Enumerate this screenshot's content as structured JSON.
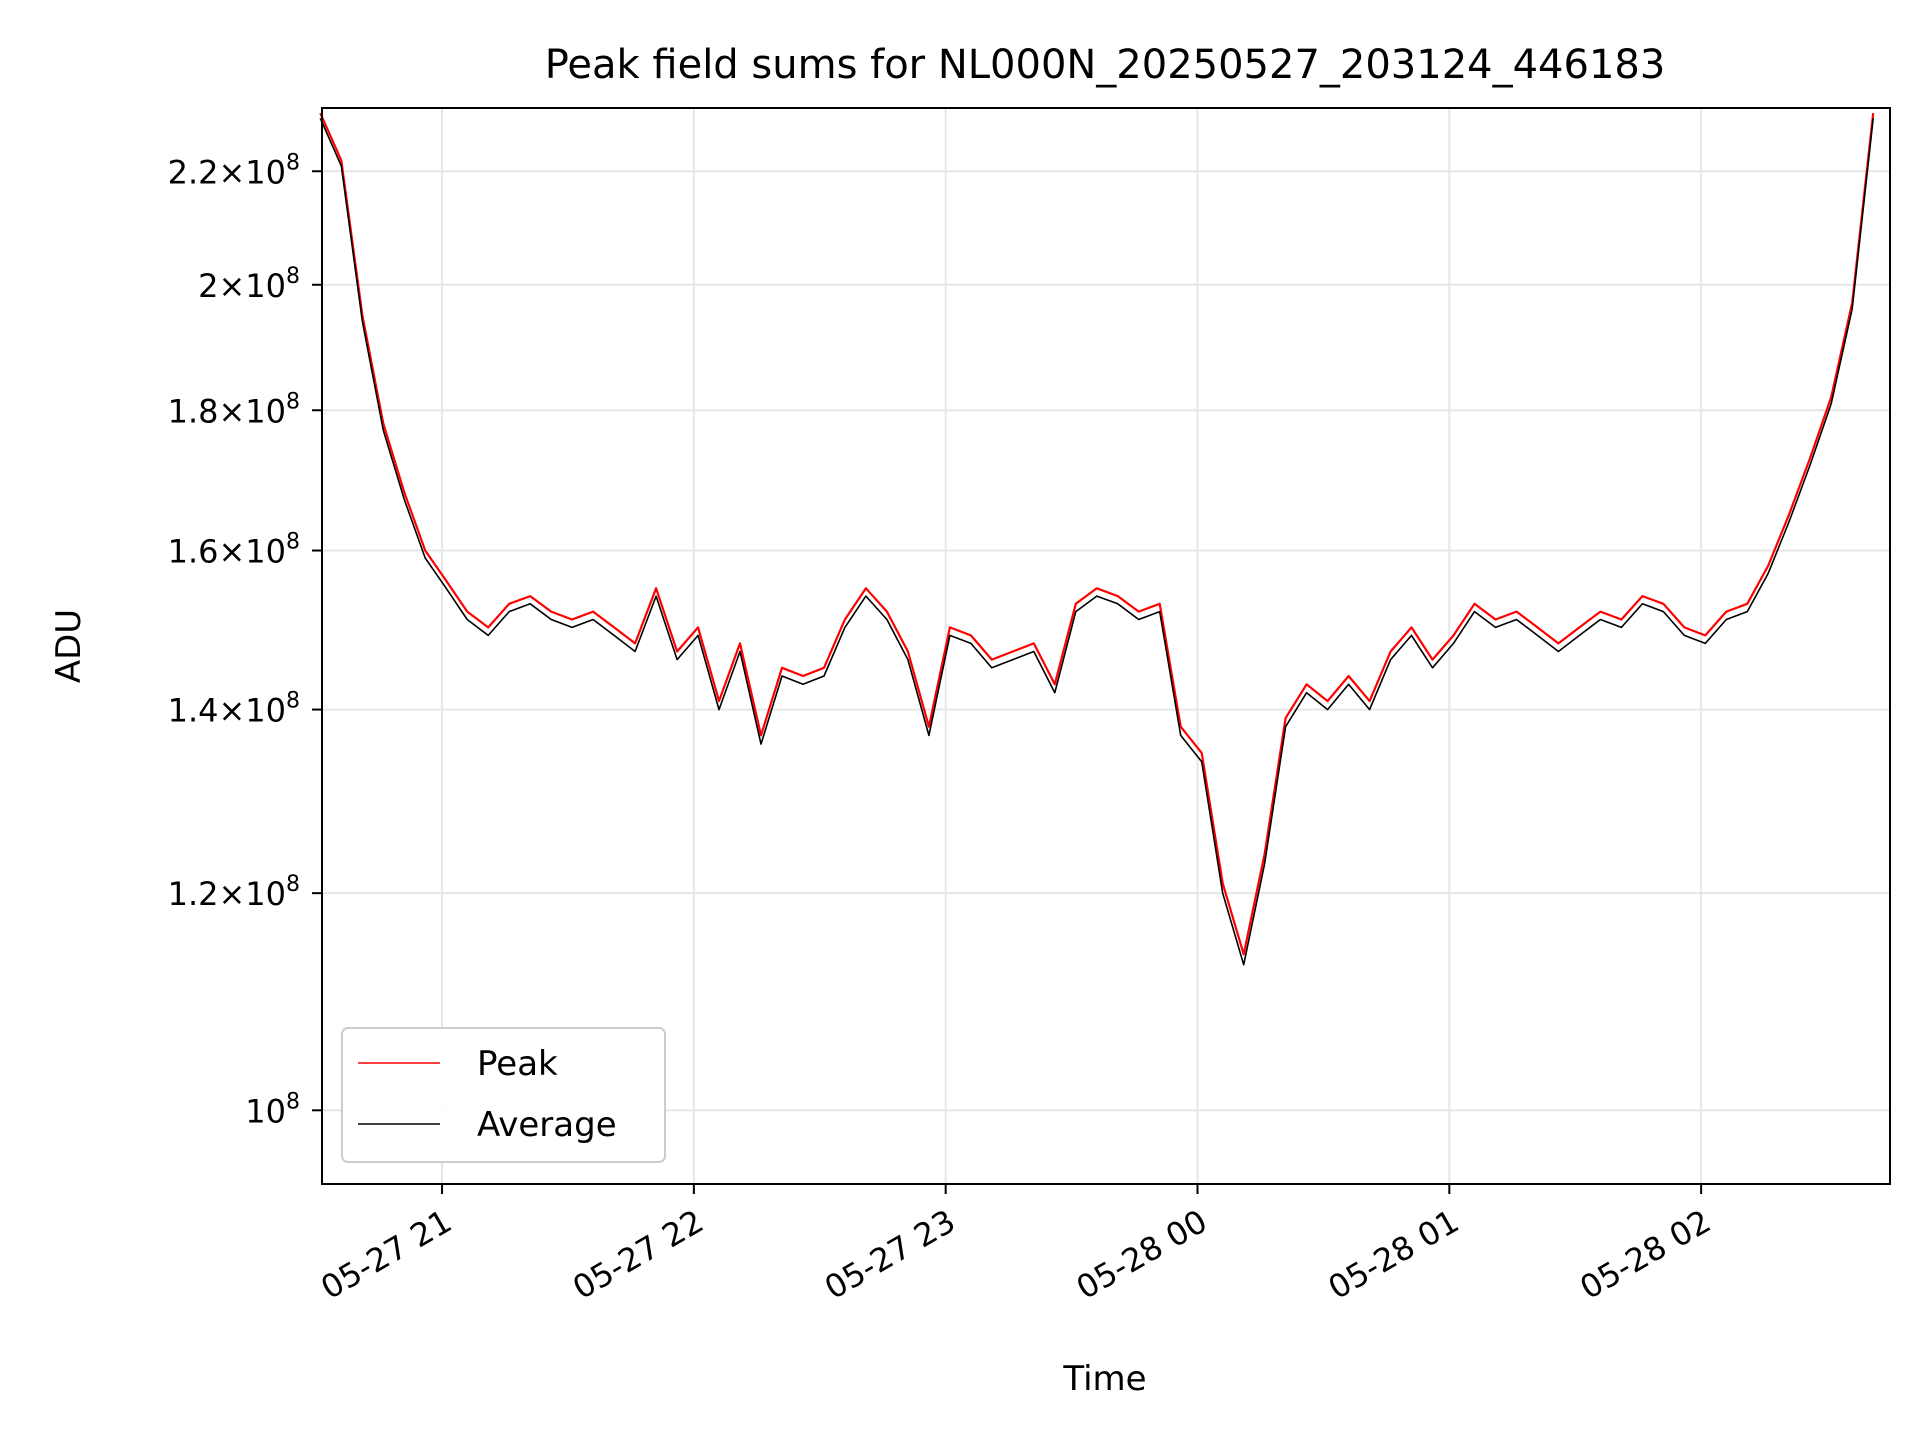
{
  "chart_data": {
    "type": "line",
    "title": "Peak field sums for NL000N_20250527_203124_446183",
    "xlabel": "Time",
    "ylabel": "ADU",
    "yscale": "log",
    "xlim": [
      "2025-05-27 20:31:24",
      "2025-05-28 02:45:00"
    ],
    "ylim": [
      94000000,
      232000000
    ],
    "x_ticks": [
      {
        "value": "2025-05-27 21:00",
        "label": "05-27 21"
      },
      {
        "value": "2025-05-27 22:00",
        "label": "05-27 22"
      },
      {
        "value": "2025-05-27 23:00",
        "label": "05-27 23"
      },
      {
        "value": "2025-05-28 00:00",
        "label": "05-28 00"
      },
      {
        "value": "2025-05-28 01:00",
        "label": "05-28 01"
      },
      {
        "value": "2025-05-28 02:00",
        "label": "05-28 02"
      }
    ],
    "y_ticks": [
      {
        "value": 100000000,
        "mantissa": "",
        "exponent": "8"
      },
      {
        "value": 120000000,
        "mantissa": "1.2",
        "exponent": "8"
      },
      {
        "value": 140000000,
        "mantissa": "1.4",
        "exponent": "8"
      },
      {
        "value": 160000000,
        "mantissa": "1.6",
        "exponent": "8"
      },
      {
        "value": 180000000,
        "mantissa": "1.8",
        "exponent": "8"
      },
      {
        "value": 200000000,
        "mantissa": "2",
        "exponent": "8"
      },
      {
        "value": 220000000,
        "mantissa": "2.2",
        "exponent": "8"
      }
    ],
    "grid": true,
    "legend_position": "bottom-left",
    "series": [
      {
        "name": "Peak",
        "color": "#ff0000",
        "x": [
          "2025-05-27 20:31",
          "2025-05-27 20:36",
          "2025-05-27 20:41",
          "2025-05-27 20:46",
          "2025-05-27 20:51",
          "2025-05-27 20:56",
          "2025-05-27 21:01",
          "2025-05-27 21:06",
          "2025-05-27 21:11",
          "2025-05-27 21:16",
          "2025-05-27 21:21",
          "2025-05-27 21:26",
          "2025-05-27 21:31",
          "2025-05-27 21:36",
          "2025-05-27 21:41",
          "2025-05-27 21:46",
          "2025-05-27 21:51",
          "2025-05-27 21:56",
          "2025-05-27 22:01",
          "2025-05-27 22:06",
          "2025-05-27 22:11",
          "2025-05-27 22:16",
          "2025-05-27 22:21",
          "2025-05-27 22:26",
          "2025-05-27 22:31",
          "2025-05-27 22:36",
          "2025-05-27 22:41",
          "2025-05-27 22:46",
          "2025-05-27 22:51",
          "2025-05-27 22:56",
          "2025-05-27 23:01",
          "2025-05-27 23:06",
          "2025-05-27 23:11",
          "2025-05-27 23:16",
          "2025-05-27 23:21",
          "2025-05-27 23:26",
          "2025-05-27 23:31",
          "2025-05-27 23:36",
          "2025-05-27 23:41",
          "2025-05-27 23:46",
          "2025-05-27 23:51",
          "2025-05-27 23:56",
          "2025-05-28 00:01",
          "2025-05-28 00:06",
          "2025-05-28 00:11",
          "2025-05-28 00:16",
          "2025-05-28 00:21",
          "2025-05-28 00:26",
          "2025-05-28 00:31",
          "2025-05-28 00:36",
          "2025-05-28 00:41",
          "2025-05-28 00:46",
          "2025-05-28 00:51",
          "2025-05-28 00:56",
          "2025-05-28 01:01",
          "2025-05-28 01:06",
          "2025-05-28 01:11",
          "2025-05-28 01:16",
          "2025-05-28 01:21",
          "2025-05-28 01:26",
          "2025-05-28 01:31",
          "2025-05-28 01:36",
          "2025-05-28 01:41",
          "2025-05-28 01:46",
          "2025-05-28 01:51",
          "2025-05-28 01:56",
          "2025-05-28 02:01",
          "2025-05-28 02:06",
          "2025-05-28 02:11",
          "2025-05-28 02:16",
          "2025-05-28 02:21",
          "2025-05-28 02:26",
          "2025-05-28 02:31",
          "2025-05-28 02:36",
          "2025-05-28 02:41"
        ],
        "values": [
          231000000,
          222000000,
          195000000,
          178000000,
          168000000,
          160000000,
          156000000,
          152000000,
          150000000,
          153000000,
          154000000,
          152000000,
          151000000,
          152000000,
          150000000,
          148000000,
          155000000,
          147000000,
          150000000,
          141000000,
          148000000,
          137000000,
          145000000,
          144000000,
          145000000,
          151000000,
          155000000,
          152000000,
          147000000,
          138000000,
          150000000,
          149000000,
          146000000,
          147000000,
          148000000,
          143000000,
          153000000,
          155000000,
          154000000,
          152000000,
          153000000,
          138000000,
          135000000,
          121000000,
          114000000,
          124000000,
          139000000,
          143000000,
          141000000,
          144000000,
          141000000,
          147000000,
          150000000,
          146000000,
          149000000,
          153000000,
          151000000,
          152000000,
          150000000,
          148000000,
          150000000,
          152000000,
          151000000,
          154000000,
          153000000,
          150000000,
          149000000,
          152000000,
          153000000,
          158000000,
          165000000,
          173000000,
          182000000,
          197000000,
          231000000
        ]
      },
      {
        "name": "Average",
        "color": "#000000",
        "x": [
          "2025-05-27 20:31",
          "2025-05-27 20:36",
          "2025-05-27 20:41",
          "2025-05-27 20:46",
          "2025-05-27 20:51",
          "2025-05-27 20:56",
          "2025-05-27 21:01",
          "2025-05-27 21:06",
          "2025-05-27 21:11",
          "2025-05-27 21:16",
          "2025-05-27 21:21",
          "2025-05-27 21:26",
          "2025-05-27 21:31",
          "2025-05-27 21:36",
          "2025-05-27 21:41",
          "2025-05-27 21:46",
          "2025-05-27 21:51",
          "2025-05-27 21:56",
          "2025-05-27 22:01",
          "2025-05-27 22:06",
          "2025-05-27 22:11",
          "2025-05-27 22:16",
          "2025-05-27 22:21",
          "2025-05-27 22:26",
          "2025-05-27 22:31",
          "2025-05-27 22:36",
          "2025-05-27 22:41",
          "2025-05-27 22:46",
          "2025-05-27 22:51",
          "2025-05-27 22:56",
          "2025-05-27 23:01",
          "2025-05-27 23:06",
          "2025-05-27 23:11",
          "2025-05-27 23:16",
          "2025-05-27 23:21",
          "2025-05-27 23:26",
          "2025-05-27 23:31",
          "2025-05-27 23:36",
          "2025-05-27 23:41",
          "2025-05-27 23:46",
          "2025-05-27 23:51",
          "2025-05-27 23:56",
          "2025-05-28 00:01",
          "2025-05-28 00:06",
          "2025-05-28 00:11",
          "2025-05-28 00:16",
          "2025-05-28 00:21",
          "2025-05-28 00:26",
          "2025-05-28 00:31",
          "2025-05-28 00:36",
          "2025-05-28 00:41",
          "2025-05-28 00:46",
          "2025-05-28 00:51",
          "2025-05-28 00:56",
          "2025-05-28 01:01",
          "2025-05-28 01:06",
          "2025-05-28 01:11",
          "2025-05-28 01:16",
          "2025-05-28 01:21",
          "2025-05-28 01:26",
          "2025-05-28 01:31",
          "2025-05-28 01:36",
          "2025-05-28 01:41",
          "2025-05-28 01:46",
          "2025-05-28 01:51",
          "2025-05-28 01:56",
          "2025-05-28 02:01",
          "2025-05-28 02:06",
          "2025-05-28 02:11",
          "2025-05-28 02:16",
          "2025-05-28 02:21",
          "2025-05-28 02:26",
          "2025-05-28 02:31",
          "2025-05-28 02:36",
          "2025-05-28 02:41"
        ],
        "values": [
          230000000,
          221000000,
          194000000,
          177000000,
          167000000,
          159000000,
          155000000,
          151000000,
          149000000,
          152000000,
          153000000,
          151000000,
          150000000,
          151000000,
          149000000,
          147000000,
          154000000,
          146000000,
          149000000,
          140000000,
          147000000,
          136000000,
          144000000,
          143000000,
          144000000,
          150000000,
          154000000,
          151000000,
          146000000,
          137000000,
          149000000,
          148000000,
          145000000,
          146000000,
          147000000,
          142000000,
          152000000,
          154000000,
          153000000,
          151000000,
          152000000,
          137000000,
          134000000,
          120000000,
          113000000,
          123000000,
          138000000,
          142000000,
          140000000,
          143000000,
          140000000,
          146000000,
          149000000,
          145000000,
          148000000,
          152000000,
          150000000,
          151000000,
          149000000,
          147000000,
          149000000,
          151000000,
          150000000,
          153000000,
          152000000,
          149000000,
          148000000,
          151000000,
          152000000,
          157000000,
          164000000,
          172000000,
          181000000,
          196000000,
          230000000
        ]
      }
    ]
  }
}
